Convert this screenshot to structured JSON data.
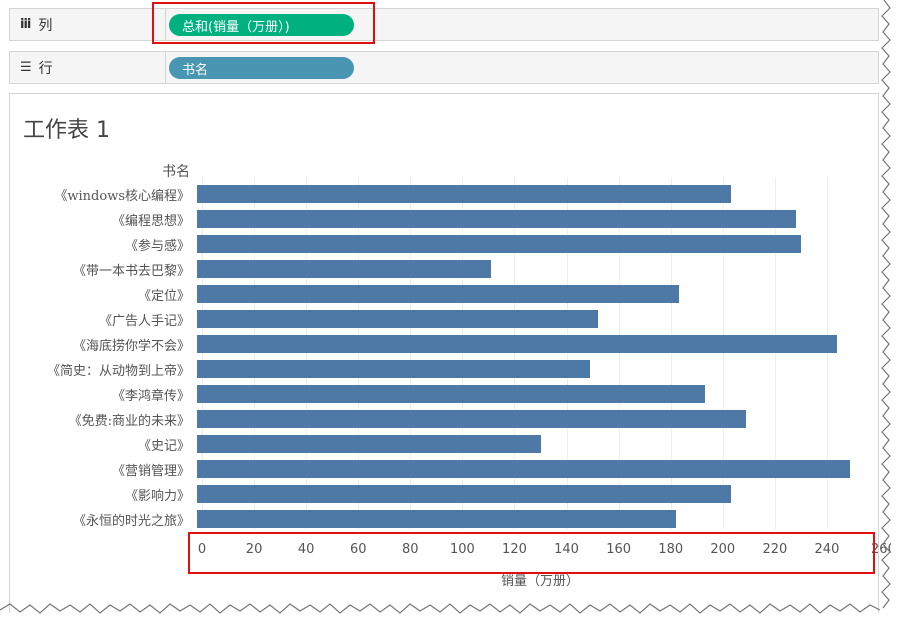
{
  "shelves": {
    "columns": {
      "icon": "iii",
      "label": "列",
      "pill": "总和(销量（万册）)",
      "pill_color": "#00b180"
    },
    "rows": {
      "icon": "☰",
      "label": "行",
      "pill": "书名",
      "pill_color": "#4996b2"
    }
  },
  "chart_data": {
    "type": "bar",
    "orientation": "horizontal",
    "title": "工作表 1",
    "rows_header": "书名",
    "categories": [
      "《windows核心编程》",
      "《编程思想》",
      "《参与感》",
      "《带一本书去巴黎》",
      "《定位》",
      "《广告人手记》",
      "《海底捞你学不会》",
      "《简史：从动物到上帝》",
      "《李鸿章传》",
      "《免费:商业的未来》",
      "《史记》",
      "《营销管理》",
      "《影响力》",
      "《永恒的时光之旅》"
    ],
    "values": [
      203,
      228,
      230,
      111,
      183,
      152,
      244,
      149,
      193,
      209,
      130,
      249,
      203,
      182
    ],
    "xlabel": "销量（万册）",
    "xlim": [
      0,
      260
    ],
    "xticks": [
      "0",
      "20",
      "40",
      "60",
      "80",
      "100",
      "120",
      "140",
      "160",
      "180",
      "200",
      "220",
      "240",
      "260"
    ],
    "bar_color": "#4e79a7",
    "grid": true
  }
}
